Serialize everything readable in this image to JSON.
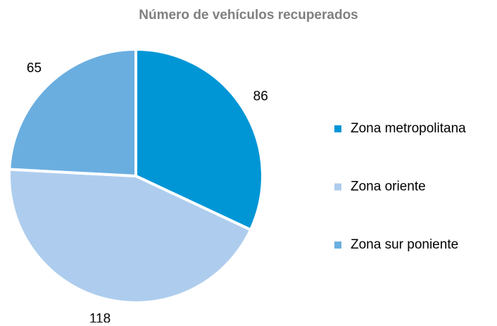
{
  "chart_data": {
    "type": "pie",
    "title": "Número de vehículos recuperados",
    "categories": [
      "Zona metropolitana",
      "Zona oriente",
      "Zona sur poniente"
    ],
    "values": [
      86,
      118,
      65
    ],
    "colors": [
      "#0096d6",
      "#aecdee",
      "#6aaee0"
    ],
    "legend": "right"
  }
}
